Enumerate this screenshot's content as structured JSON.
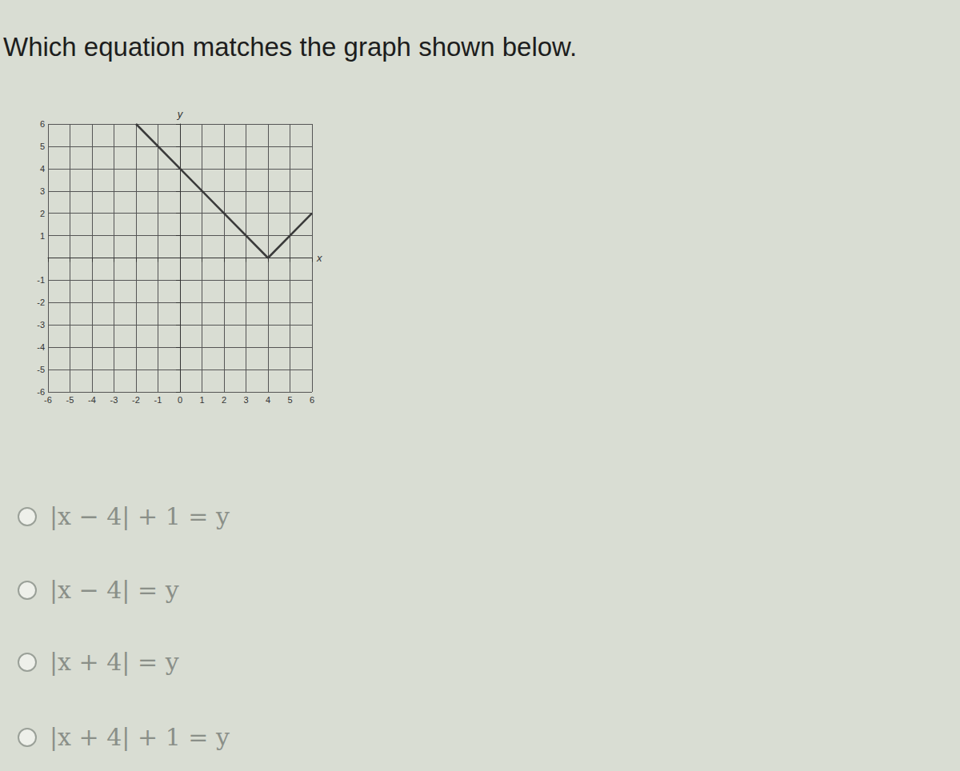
{
  "question": "Which equation matches the graph shown below.",
  "chart_data": {
    "type": "line",
    "x": [
      -2,
      4,
      6
    ],
    "values": [
      6,
      0,
      2
    ],
    "color": "#3a3a3a",
    "xlim": [
      -6,
      6
    ],
    "ylim": [
      -6,
      6
    ],
    "xticks": [
      -6,
      -5,
      -4,
      -3,
      -2,
      -1,
      0,
      1,
      2,
      3,
      4,
      5,
      6
    ],
    "yticks": [
      -6,
      -5,
      -4,
      -3,
      -2,
      -1,
      1,
      2,
      3,
      4,
      5,
      6
    ],
    "x_label": "x",
    "y_label": "y",
    "grid": true
  },
  "options": [
    "|x − 4| + 1 = y",
    "|x − 4| = y",
    "|x + 4| = y",
    "|x + 4| + 1 = y"
  ]
}
